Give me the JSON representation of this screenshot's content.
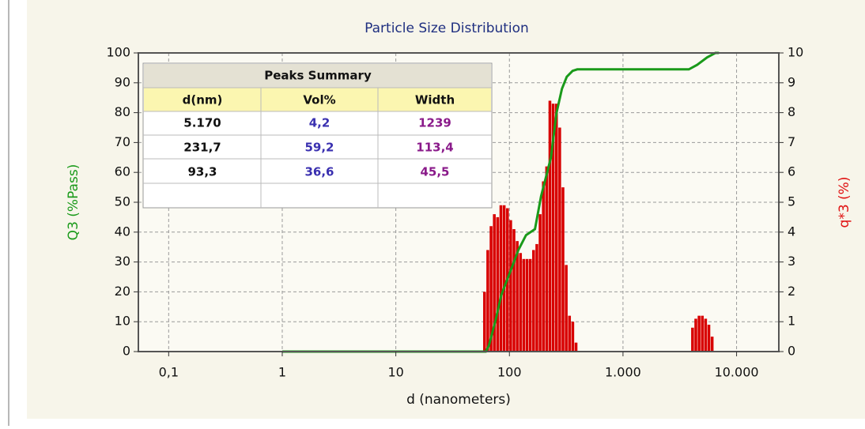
{
  "chart_data": {
    "type": "combo",
    "title": "Particle Size Distribution",
    "xlabel": "d (nanometers)",
    "ylabel": "Q3 (%Pass)",
    "y2label": "q*3 (%)",
    "xscale": "log",
    "grid": true,
    "xlim": [
      0.0541,
      23550
    ],
    "xticks": [
      {
        "value": 0.1,
        "label": "0,1"
      },
      1,
      10,
      100,
      {
        "value": 1000,
        "label": "1.000"
      },
      {
        "value": 10000,
        "label": "10.000"
      }
    ],
    "ylim": [
      0,
      100
    ],
    "yticks": [
      0,
      10,
      20,
      30,
      40,
      50,
      60,
      70,
      80,
      90,
      100
    ],
    "y2lim": [
      0,
      10
    ],
    "y2ticks": [
      0,
      1,
      2,
      3,
      4,
      5,
      6,
      7,
      8,
      9,
      10
    ],
    "layers": [
      {
        "type": "histogram",
        "axis": "y2",
        "color": "#d80000",
        "bins": [
          58.7,
          62.7,
          67.0,
          71.6,
          76.5,
          81.8,
          87.4,
          93.4,
          99.8,
          106.6,
          113.9,
          121.7,
          130.0,
          138.9,
          148.4,
          158.6,
          169.5,
          181.1,
          193.5,
          206.8,
          220.9,
          236.0,
          252.2,
          269.5,
          287.9,
          307.6,
          328.7,
          351.2,
          375.3,
          401.0,
          3981,
          4254,
          4545,
          4857,
          5189,
          5545,
          5925,
          6331
        ],
        "values": [
          2.0,
          3.4,
          4.2,
          4.6,
          4.5,
          4.9,
          4.9,
          4.8,
          4.4,
          4.1,
          3.7,
          3.3,
          3.1,
          3.1,
          3.1,
          3.4,
          3.6,
          4.6,
          5.7,
          6.2,
          8.4,
          8.3,
          8.3,
          7.5,
          5.5,
          2.9,
          1.2,
          1.0,
          0.3,
          0,
          0.8,
          1.1,
          1.2,
          1.2,
          1.1,
          0.9,
          0.5
        ]
      },
      {
        "type": "line",
        "axis": "y",
        "color": "#1a9a1a",
        "x": [
          1,
          62,
          66,
          75,
          85,
          100,
          120,
          140,
          168,
          190,
          215,
          232,
          260,
          290,
          320,
          360,
          396,
          3800,
          4500,
          5500,
          6500,
          7000
        ],
        "values": [
          0,
          0,
          2,
          10,
          19,
          26,
          34,
          39,
          41,
          52,
          60,
          65,
          80,
          88,
          92,
          94,
          94.5,
          94.5,
          96,
          98.5,
          100,
          100
        ]
      }
    ]
  },
  "table": {
    "title": "Peaks Summary",
    "header": [
      "d(nm)",
      "Vol%",
      "Width"
    ],
    "rows": [
      [
        "5.170",
        "4,2",
        "1239"
      ],
      [
        "231,7",
        "59,2",
        "113,4"
      ],
      [
        "93,3",
        "36,6",
        "45,5"
      ]
    ]
  }
}
